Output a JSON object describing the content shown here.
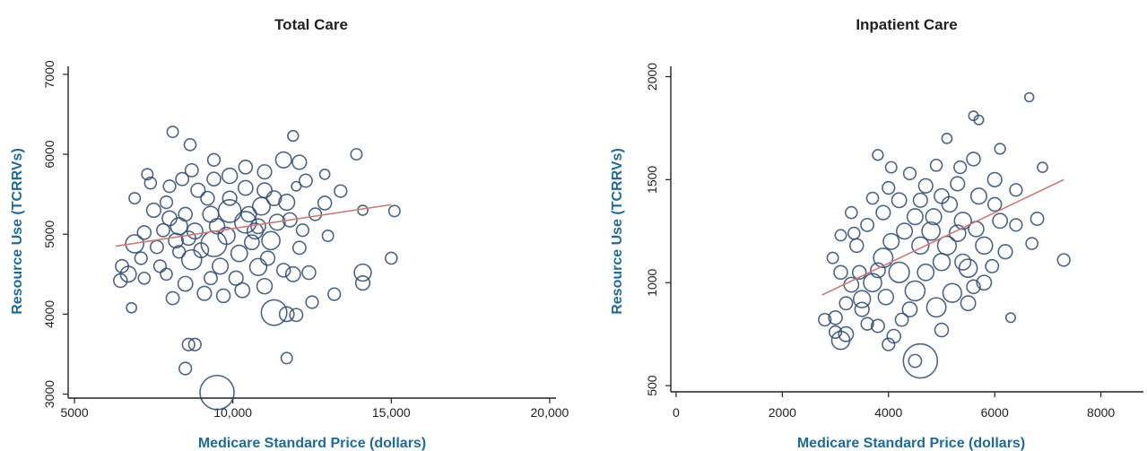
{
  "colors": {
    "bubble": "#2e4a6e",
    "fit_line": "#c87b7b",
    "axis_label": "#1f6a98"
  },
  "chart_data": [
    {
      "type": "scatter",
      "title": "Total Care",
      "xlabel": "Medicare Standard Price (dollars)",
      "ylabel": "Resource Use (TCRRVs)",
      "xlim": [
        4800,
        20200
      ],
      "ylim": [
        2950,
        7100
      ],
      "x_ticks": [
        5000,
        10000,
        15000,
        20000
      ],
      "x_tick_labels": [
        "5000",
        "10,000",
        "15,000",
        "20,000"
      ],
      "y_ticks": [
        3000,
        4000,
        5000,
        6000,
        7000
      ],
      "y_tick_labels": [
        "3000",
        "4000",
        "5000",
        "6000",
        "7000"
      ],
      "fit_line": {
        "x": [
          6300,
          15000
        ],
        "y": [
          4850,
          5370
        ]
      },
      "bubble_size_units": "relative",
      "points": [
        [
          9500,
          3020,
          5
        ],
        [
          8500,
          3320,
          1.2
        ],
        [
          8600,
          3620,
          1.2
        ],
        [
          8800,
          3620,
          1.2
        ],
        [
          11700,
          3450,
          1
        ],
        [
          11300,
          4020,
          3.5
        ],
        [
          11700,
          4000,
          1.6
        ],
        [
          12000,
          3990,
          1.3
        ],
        [
          12500,
          4150,
          1.2
        ],
        [
          13200,
          4250,
          1.2
        ],
        [
          14100,
          4520,
          2
        ],
        [
          14100,
          4390,
          1.5
        ],
        [
          15000,
          4700,
          1.1
        ],
        [
          15100,
          5290,
          1
        ],
        [
          14100,
          5300,
          0.8
        ],
        [
          13900,
          6000,
          1
        ],
        [
          13400,
          5540,
          1.2
        ],
        [
          12900,
          5390,
          1.4
        ],
        [
          12100,
          5900,
          1.5
        ],
        [
          11900,
          6230,
          0.9
        ],
        [
          12900,
          5750,
          0.8
        ],
        [
          12000,
          5600,
          0.7
        ],
        [
          11700,
          5400,
          1.8
        ],
        [
          11200,
          4920,
          2.2
        ],
        [
          10800,
          4590,
          2
        ],
        [
          10400,
          5150,
          2.8
        ],
        [
          9900,
          5290,
          3
        ],
        [
          9400,
          4880,
          3.5
        ],
        [
          8700,
          4680,
          2.5
        ],
        [
          8300,
          5100,
          2
        ],
        [
          8000,
          5200,
          1.6
        ],
        [
          7500,
          5300,
          1.5
        ],
        [
          6900,
          4880,
          2.2
        ],
        [
          6700,
          4500,
          1.8
        ],
        [
          6450,
          4420,
          1.4
        ],
        [
          6800,
          4080,
          0.8
        ],
        [
          7200,
          4450,
          1.1
        ],
        [
          7700,
          4600,
          1.2
        ],
        [
          8100,
          4200,
          1.3
        ],
        [
          8500,
          4380,
          1.6
        ],
        [
          9100,
          4260,
          1.5
        ],
        [
          9700,
          4230,
          1.4
        ],
        [
          10300,
          4300,
          1.6
        ],
        [
          11000,
          4350,
          1.7
        ],
        [
          11900,
          4500,
          1.6
        ],
        [
          12400,
          4520,
          1.4
        ],
        [
          12100,
          4830,
          1.3
        ],
        [
          11400,
          5150,
          1.8
        ],
        [
          10900,
          5350,
          2.1
        ],
        [
          10400,
          5580,
          1.6
        ],
        [
          9900,
          5730,
          1.7
        ],
        [
          9400,
          5690,
          1.4
        ],
        [
          8900,
          5550,
          1.5
        ],
        [
          8400,
          5690,
          1.3
        ],
        [
          8100,
          6280,
          1
        ],
        [
          8650,
          6120,
          1.1
        ],
        [
          9400,
          5930,
          1.2
        ],
        [
          10400,
          5840,
          1.4
        ],
        [
          11000,
          5780,
          1.5
        ],
        [
          11600,
          5930,
          1.8
        ],
        [
          12300,
          5670,
          1.3
        ],
        [
          7400,
          5640,
          1.1
        ],
        [
          6900,
          5450,
          1
        ],
        [
          7200,
          5020,
          1.4
        ],
        [
          7600,
          4840,
          1.3
        ],
        [
          8200,
          4920,
          1.6
        ],
        [
          8800,
          5040,
          1.8
        ],
        [
          9300,
          5250,
          1.8
        ],
        [
          9800,
          4980,
          2
        ],
        [
          10200,
          4760,
          1.9
        ],
        [
          10700,
          5040,
          1.8
        ],
        [
          11300,
          5450,
          1.6
        ],
        [
          11800,
          5180,
          1.5
        ],
        [
          12600,
          5250,
          1.2
        ],
        [
          13000,
          4980,
          1
        ],
        [
          7900,
          5400,
          1.2
        ],
        [
          8500,
          5250,
          1.4
        ],
        [
          9000,
          4800,
          1.6
        ],
        [
          9600,
          4600,
          1.8
        ],
        [
          10100,
          4450,
          1.5
        ],
        [
          10600,
          4900,
          1.6
        ],
        [
          11100,
          4700,
          1.5
        ],
        [
          11600,
          4550,
          1.4
        ],
        [
          7900,
          4500,
          1.1
        ],
        [
          8300,
          4780,
          1.2
        ],
        [
          9300,
          4450,
          1.3
        ],
        [
          9900,
          5450,
          1.5
        ],
        [
          10500,
          5250,
          1.7
        ],
        [
          11000,
          5550,
          1.6
        ],
        [
          12200,
          5050,
          1.2
        ],
        [
          8000,
          5600,
          1.2
        ],
        [
          8700,
          5800,
          1.3
        ],
        [
          9200,
          5450,
          1.4
        ],
        [
          7100,
          4700,
          1.2
        ],
        [
          6500,
          4600,
          1.3
        ],
        [
          7300,
          5750,
          1
        ],
        [
          7800,
          5050,
          1.3
        ],
        [
          8600,
          4950,
          1.5
        ],
        [
          9500,
          5100,
          1.7
        ],
        [
          10800,
          5100,
          1.6
        ]
      ]
    },
    {
      "type": "scatter",
      "title": "Inpatient Care",
      "xlabel": "Medicare Standard Price (dollars)",
      "ylabel": "Resource Use (TCRRVs)",
      "xlim": [
        -100,
        8800
      ],
      "ylim": [
        470,
        2050
      ],
      "x_ticks": [
        0,
        2000,
        4000,
        6000,
        8000
      ],
      "x_tick_labels": [
        "0",
        "2000",
        "4000",
        "6000",
        "8000"
      ],
      "y_ticks": [
        500,
        1000,
        1500,
        2000
      ],
      "y_tick_labels": [
        "500",
        "1000",
        "1500",
        "2000"
      ],
      "fit_line": {
        "x": [
          2750,
          7300
        ],
        "y": [
          940,
          1500
        ]
      },
      "bubble_size_units": "relative",
      "points": [
        [
          4600,
          620,
          5
        ],
        [
          4500,
          620,
          1.3
        ],
        [
          3100,
          720,
          2.2
        ],
        [
          3200,
          750,
          1.6
        ],
        [
          2800,
          820,
          1.2
        ],
        [
          3000,
          830,
          1.4
        ],
        [
          3500,
          870,
          1.5
        ],
        [
          3800,
          790,
          1.3
        ],
        [
          4000,
          700,
          1.2
        ],
        [
          4100,
          740,
          1.4
        ],
        [
          5000,
          770,
          1.4
        ],
        [
          6300,
          830,
          0.7
        ],
        [
          7300,
          1110,
          1.2
        ],
        [
          6800,
          1310,
          1.3
        ],
        [
          6700,
          1190,
          1.1
        ],
        [
          6650,
          1900,
          0.6
        ],
        [
          6900,
          1560,
          0.8
        ],
        [
          6400,
          1450,
          1.2
        ],
        [
          6100,
          1300,
          1.6
        ],
        [
          5800,
          1180,
          2
        ],
        [
          5500,
          1070,
          2.2
        ],
        [
          5200,
          950,
          2.3
        ],
        [
          4900,
          880,
          2.4
        ],
        [
          4500,
          960,
          2.5
        ],
        [
          4200,
          1050,
          2.6
        ],
        [
          3900,
          1120,
          2.4
        ],
        [
          3700,
          1000,
          2.2
        ],
        [
          3500,
          920,
          2
        ],
        [
          3300,
          990,
          1.6
        ],
        [
          3100,
          1050,
          1.4
        ],
        [
          3400,
          1180,
          1.4
        ],
        [
          3600,
          1280,
          1.3
        ],
        [
          3900,
          1340,
          1.5
        ],
        [
          4200,
          1400,
          1.6
        ],
        [
          4500,
          1320,
          1.8
        ],
        [
          4800,
          1250,
          2.2
        ],
        [
          5100,
          1180,
          2.3
        ],
        [
          5400,
          1300,
          2
        ],
        [
          5700,
          1420,
          1.8
        ],
        [
          6000,
          1500,
          1.5
        ],
        [
          5600,
          1600,
          1.4
        ],
        [
          5300,
          1480,
          1.5
        ],
        [
          5000,
          1420,
          1.6
        ],
        [
          4700,
          1470,
          1.5
        ],
        [
          4400,
          1530,
          1.2
        ],
        [
          4000,
          1460,
          1.2
        ],
        [
          3700,
          1410,
          1.1
        ],
        [
          3300,
          1340,
          1.1
        ],
        [
          3100,
          1230,
          1
        ],
        [
          2950,
          1120,
          1
        ],
        [
          5100,
          1700,
          0.8
        ],
        [
          5600,
          1810,
          0.7
        ],
        [
          5700,
          1790,
          0.7
        ],
        [
          3800,
          1620,
          0.9
        ],
        [
          6100,
          1650,
          0.9
        ],
        [
          5400,
          1100,
          1.8
        ],
        [
          4600,
          1180,
          2
        ],
        [
          4300,
          1250,
          1.8
        ],
        [
          4050,
          1200,
          1.8
        ],
        [
          3800,
          1060,
          1.6
        ],
        [
          4400,
          870,
          1.6
        ],
        [
          4700,
          1050,
          1.9
        ],
        [
          5000,
          1100,
          2
        ],
        [
          5300,
          1240,
          1.9
        ],
        [
          5800,
          1000,
          1.6
        ],
        [
          6200,
          1150,
          1.5
        ],
        [
          3600,
          800,
          1.2
        ],
        [
          4250,
          820,
          1.3
        ],
        [
          5500,
          900,
          1.6
        ],
        [
          3200,
          900,
          1.3
        ],
        [
          3450,
          1050,
          1.4
        ],
        [
          3950,
          930,
          1.7
        ],
        [
          4850,
          1320,
          1.8
        ],
        [
          5150,
          1380,
          1.7
        ],
        [
          5650,
          1260,
          1.7
        ],
        [
          6000,
          1380,
          1.4
        ],
        [
          6400,
          1280,
          1.2
        ],
        [
          4050,
          1560,
          1
        ],
        [
          4900,
          1570,
          1.1
        ],
        [
          5350,
          1560,
          1.2
        ],
        [
          5950,
          1080,
          1.3
        ],
        [
          5600,
          980,
          1.4
        ],
        [
          3000,
          760,
          1.2
        ],
        [
          3350,
          1240,
          1.1
        ],
        [
          4600,
          1400,
          1.5
        ]
      ]
    }
  ]
}
